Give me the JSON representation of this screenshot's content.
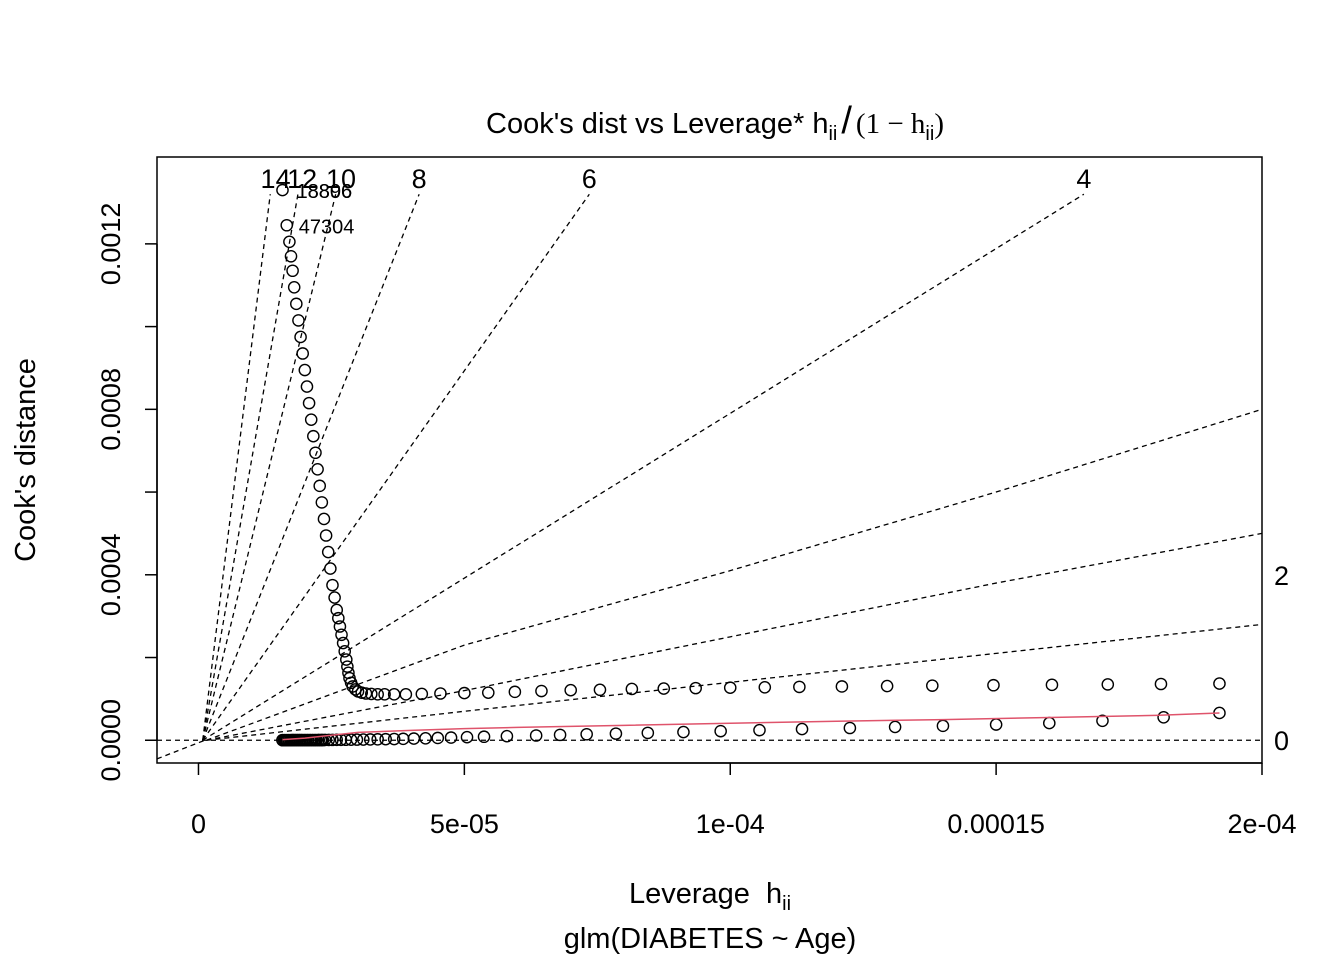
{
  "chart_data": {
    "type": "scatter",
    "title": {
      "main": "Cook's dist vs Leverage* h",
      "sub_ii": "ii",
      "frac_slash": "/",
      "paren_open": "(1 − h",
      "paren_close": ")"
    },
    "xlabel": {
      "main": "Leverage  h",
      "sub": "ii"
    },
    "caption": "glm(DIABETES ~ Age)",
    "ylabel": "Cook's distance",
    "xlim": [
      -7.8e-06,
      0.0002
    ],
    "ylim": [
      -5.5e-05,
      0.00141
    ],
    "x_ticks": [
      {
        "value": 0,
        "label": "0"
      },
      {
        "value": 5e-05,
        "label": "5e-05"
      },
      {
        "value": 0.0001,
        "label": "1e-04"
      },
      {
        "value": 0.00015,
        "label": "0.00015"
      },
      {
        "value": 0.0002,
        "label": "2e-04"
      }
    ],
    "y_ticks": [
      {
        "value": 0,
        "label": "0.0000"
      },
      {
        "value": 0.0002,
        "label": ""
      },
      {
        "value": 0.0004,
        "label": "0.0004"
      },
      {
        "value": 0.0006,
        "label": ""
      },
      {
        "value": 0.0008,
        "label": "0.0008"
      },
      {
        "value": 0.001,
        "label": ""
      },
      {
        "value": 0.0012,
        "label": "0.0012"
      }
    ],
    "contour_labels": [
      "14",
      "12",
      "10",
      "8",
      "6",
      "4",
      "2",
      "0"
    ],
    "contour_values": [
      14,
      12,
      10,
      8,
      6,
      4,
      2,
      0
    ],
    "upper_branch": {
      "x": [
        1.58e-05,
        1.66e-05,
        1.71e-05,
        1.74e-05,
        1.77e-05,
        1.8e-05,
        1.84e-05,
        1.88e-05,
        1.92e-05,
        1.96e-05,
        2e-05,
        2.04e-05,
        2.08e-05,
        2.12e-05,
        2.16e-05,
        2.2e-05,
        2.24e-05,
        2.28e-05,
        2.32e-05,
        2.36e-05,
        2.4e-05,
        2.44e-05,
        2.48e-05,
        2.52e-05,
        2.56e-05,
        2.6e-05,
        2.63e-05,
        2.66e-05,
        2.69e-05,
        2.72e-05,
        2.75e-05,
        2.78e-05,
        2.8e-05,
        2.82e-05,
        2.84e-05,
        2.87e-05,
        2.9e-05,
        2.95e-05,
        3e-05,
        3.07e-05,
        3.15e-05,
        3.25e-05,
        3.37e-05,
        3.5e-05,
        3.68e-05,
        3.9e-05,
        4.2e-05,
        4.55e-05,
        5e-05,
        5.45e-05,
        5.95e-05,
        6.45e-05,
        7e-05,
        7.55e-05,
        8.15e-05,
        8.75e-05,
        9.35e-05,
        0.0001,
        0.0001065,
        0.000113,
        0.000121,
        0.0001295,
        0.000138,
        0.0001495,
        0.0001605,
        0.000171,
        0.000181,
        0.000192
      ],
      "y": [
        0.00133,
        0.001245,
        0.001205,
        0.00117,
        0.001135,
        0.001095,
        0.001055,
        0.001015,
        0.000975,
        0.000935,
        0.000895,
        0.000855,
        0.000815,
        0.000775,
        0.000735,
        0.000695,
        0.000655,
        0.000615,
        0.000575,
        0.000535,
        0.000495,
        0.000455,
        0.000415,
        0.000375,
        0.000345,
        0.000315,
        0.000295,
        0.000275,
        0.000255,
        0.000235,
        0.000215,
        0.000195,
        0.000178,
        0.000163,
        0.00015,
        0.000139,
        0.00013,
        0.000123,
        0.000118,
        0.000115,
        0.000113,
        0.000112,
        0.000111,
        0.000111,
        0.000111,
        0.000111,
        0.000112,
        0.000113,
        0.000114,
        0.000115,
        0.000117,
        0.000119,
        0.000121,
        0.000122,
        0.000124,
        0.000125,
        0.000126,
        0.000127,
        0.000128,
        0.000129,
        0.00013,
        0.000131,
        0.000132,
        0.000133,
        0.000134,
        0.000135,
        0.000136,
        0.000137
      ]
    },
    "lower_branch": {
      "x": [
        1.58e-05,
        1.61e-05,
        1.64e-05,
        1.67e-05,
        1.7e-05,
        1.73e-05,
        1.76e-05,
        1.79e-05,
        1.83e-05,
        1.87e-05,
        1.91e-05,
        1.95e-05,
        2e-05,
        2.05e-05,
        2.1e-05,
        2.15e-05,
        2.2e-05,
        2.26e-05,
        2.32e-05,
        2.38e-05,
        2.45e-05,
        2.52e-05,
        2.6e-05,
        2.68e-05,
        2.77e-05,
        2.87e-05,
        2.98e-05,
        3.1e-05,
        3.23e-05,
        3.37e-05,
        3.52e-05,
        3.68e-05,
        3.85e-05,
        4.05e-05,
        4.27e-05,
        4.5e-05,
        4.75e-05,
        5.05e-05,
        5.37e-05,
        5.8e-05,
        6.35e-05,
        6.8e-05,
        7.3e-05,
        7.85e-05,
        8.45e-05,
        9.12e-05,
        9.82e-05,
        0.0001055,
        0.0001135,
        0.0001225,
        0.000131,
        0.00014,
        0.00015,
        0.00016,
        0.00017,
        0.0001815,
        0.000192
      ],
      "y": [
        2e-07,
        2e-07,
        3e-07,
        3e-07,
        3e-07,
        3e-07,
        4e-07,
        4e-07,
        4e-07,
        4e-07,
        5e-07,
        5e-07,
        5e-07,
        5e-07,
        6e-07,
        6e-07,
        6e-07,
        7e-07,
        7e-07,
        8e-07,
        8e-07,
        9e-07,
        1e-06,
        1.1e-06,
        1.2e-06,
        1.3e-06,
        1.5e-06,
        1.7e-06,
        1.9e-06,
        2.2e-06,
        2.5e-06,
        2.9e-06,
        3.4e-06,
        4e-06,
        4.7e-06,
        5.5e-06,
        6.4e-06,
        7.4e-06,
        8.5e-06,
        9.8e-06,
        1.15e-05,
        1.3e-05,
        1.45e-05,
        1.6e-05,
        1.78e-05,
        1.98e-05,
        2.2e-05,
        2.44e-05,
        2.7e-05,
        2.96e-05,
        3.22e-05,
        3.48e-05,
        3.8e-05,
        4.15e-05,
        4.7e-05,
        5.55e-05,
        6.6e-05
      ]
    },
    "smoother": {
      "x": [
        1.58e-05,
        2e-05,
        2.5e-05,
        3e-05,
        4e-05,
        5e-05,
        6e-05,
        8e-05,
        0.0001,
        0.00012,
        0.00014,
        0.00016,
        0.00018,
        0.000192
      ],
      "y": [
        1.5e-06,
        5e-06,
        1.2e-05,
        1.9e-05,
        2.4e-05,
        2.8e-05,
        3.1e-05,
        3.6e-05,
        4.1e-05,
        4.6e-05,
        5e-05,
        5.5e-05,
        6e-05,
        6.6e-05
      ]
    },
    "point_labels": [
      {
        "label": "18806",
        "x": 1.58e-05,
        "y": 0.00133
      },
      {
        "label": "18896",
        "x": 1.58e-05,
        "y": 0.00133
      },
      {
        "label": "47304",
        "x": 1.66e-05,
        "y": 0.001245
      }
    ],
    "colors": {
      "smoother": "#DF536B",
      "points": "#000000"
    }
  }
}
